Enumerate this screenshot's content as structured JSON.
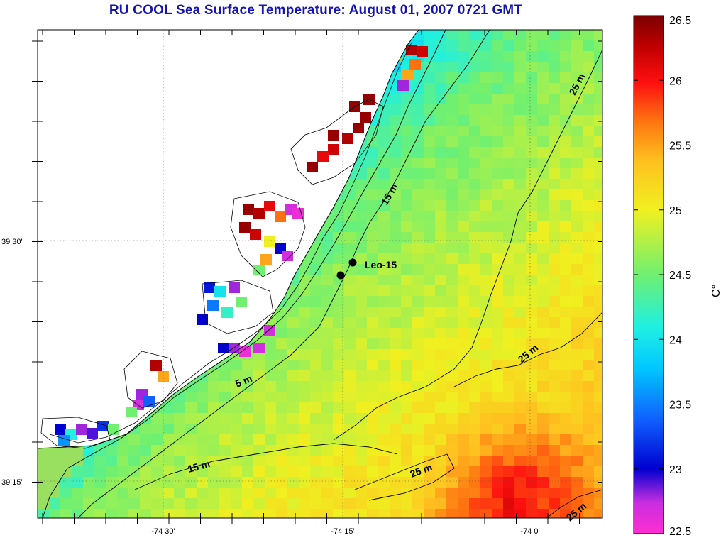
{
  "title": "RU COOL  Sea Surface Temperature:  August 01, 2007 0721 GMT",
  "x_axis_labels": [
    "-74 30'",
    "-74 15'",
    "-74 0'"
  ],
  "y_axis_labels": [
    "39 30'",
    "39 15'"
  ],
  "colorbar": {
    "unit": "C°",
    "min": 22.5,
    "max": 26.5,
    "ticks": [
      "26.5",
      "26",
      "25.5",
      "25",
      "24.5",
      "24",
      "23.5",
      "23",
      "22.5"
    ]
  },
  "contour_labels": [
    "5 m",
    "15 m",
    "15 m",
    "25 m",
    "25 m",
    "25 m",
    "25 m"
  ],
  "station": {
    "name": "Leo-15"
  },
  "colors": {
    "title": "#1414b4",
    "land": "#ffffff",
    "coast_line": "#000000"
  }
}
